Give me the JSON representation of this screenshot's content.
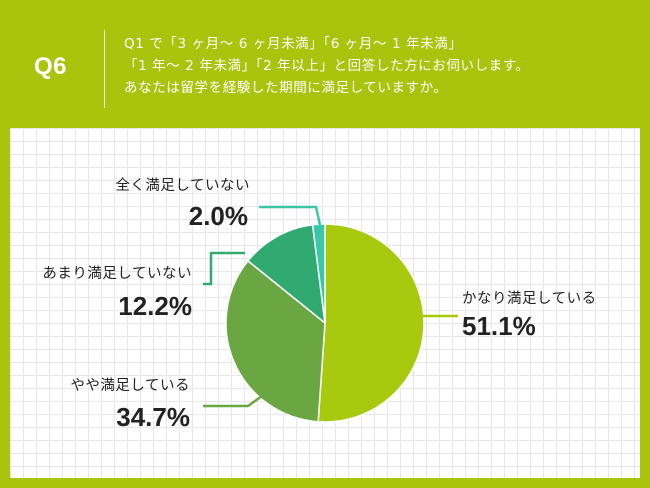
{
  "header": {
    "q_label": "Q6",
    "lines": [
      "Q1 で「3 ヶ月～ 6 ヶ月未満」「6 ヶ月～ 1 年未満」",
      "「1 年～ 2 年未満」「2 年以上」と回答した方にお伺いします。",
      "あなたは留学を経験した期間に満足していますか。"
    ]
  },
  "colors": {
    "page_background": "#a8c40c",
    "card_background": "#ffffff",
    "grid": "#e7e7e7"
  },
  "chart_data": {
    "type": "pie",
    "start": "12 o'clock, clockwise",
    "slices": [
      {
        "label": "かなり満足している",
        "value": 51.1,
        "value_text": "51.1%",
        "color": "#a8c90e"
      },
      {
        "label": "やや満足している",
        "value": 34.7,
        "value_text": "34.7%",
        "color": "#6aa743"
      },
      {
        "label": "あまり満足していない",
        "value": 12.2,
        "value_text": "12.2%",
        "color": "#31aa72"
      },
      {
        "label": "全く満足していない",
        "value": 2.0,
        "value_text": "2.0%",
        "color": "#3bc6a8"
      }
    ]
  }
}
